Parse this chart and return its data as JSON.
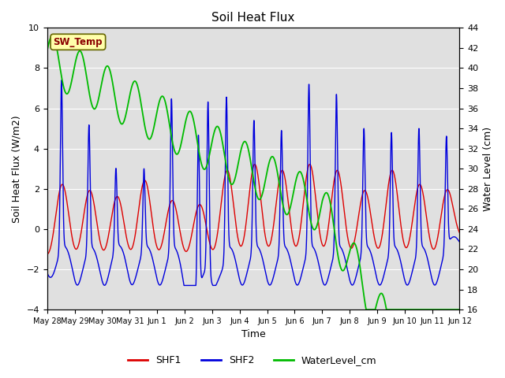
{
  "title": "Soil Heat Flux",
  "xlabel": "Time",
  "ylabel_left": "Soil Heat Flux (W/m2)",
  "ylabel_right": "Water Level (cm)",
  "ylim_left": [
    -4,
    10
  ],
  "ylim_right": [
    16,
    44
  ],
  "yticks_left": [
    -4,
    -2,
    0,
    2,
    4,
    6,
    8,
    10
  ],
  "yticks_right": [
    16,
    18,
    20,
    22,
    24,
    26,
    28,
    30,
    32,
    34,
    36,
    38,
    40,
    42,
    44
  ],
  "background_color": "#ffffff",
  "plot_bg_color": "#e0e0e0",
  "grid_color": "#ffffff",
  "shf1_color": "#dd0000",
  "shf2_color": "#0000dd",
  "water_color": "#00bb00",
  "annotation_text": "SW_Temp",
  "annotation_color": "#8b0000",
  "annotation_bg": "#ffffaa",
  "annotation_border": "#666600",
  "legend_entries": [
    "SHF1",
    "SHF2",
    "WaterLevel_cm"
  ],
  "xtick_labels": [
    "May 28",
    "May 29",
    "May 30",
    "May 31",
    "Jun 1",
    "Jun 2",
    "Jun 3",
    "Jun 4",
    "Jun 5",
    "Jun 6",
    "Jun 7",
    "Jun 8",
    "Jun 9",
    "Jun 10",
    "Jun 11",
    "Jun 12"
  ]
}
